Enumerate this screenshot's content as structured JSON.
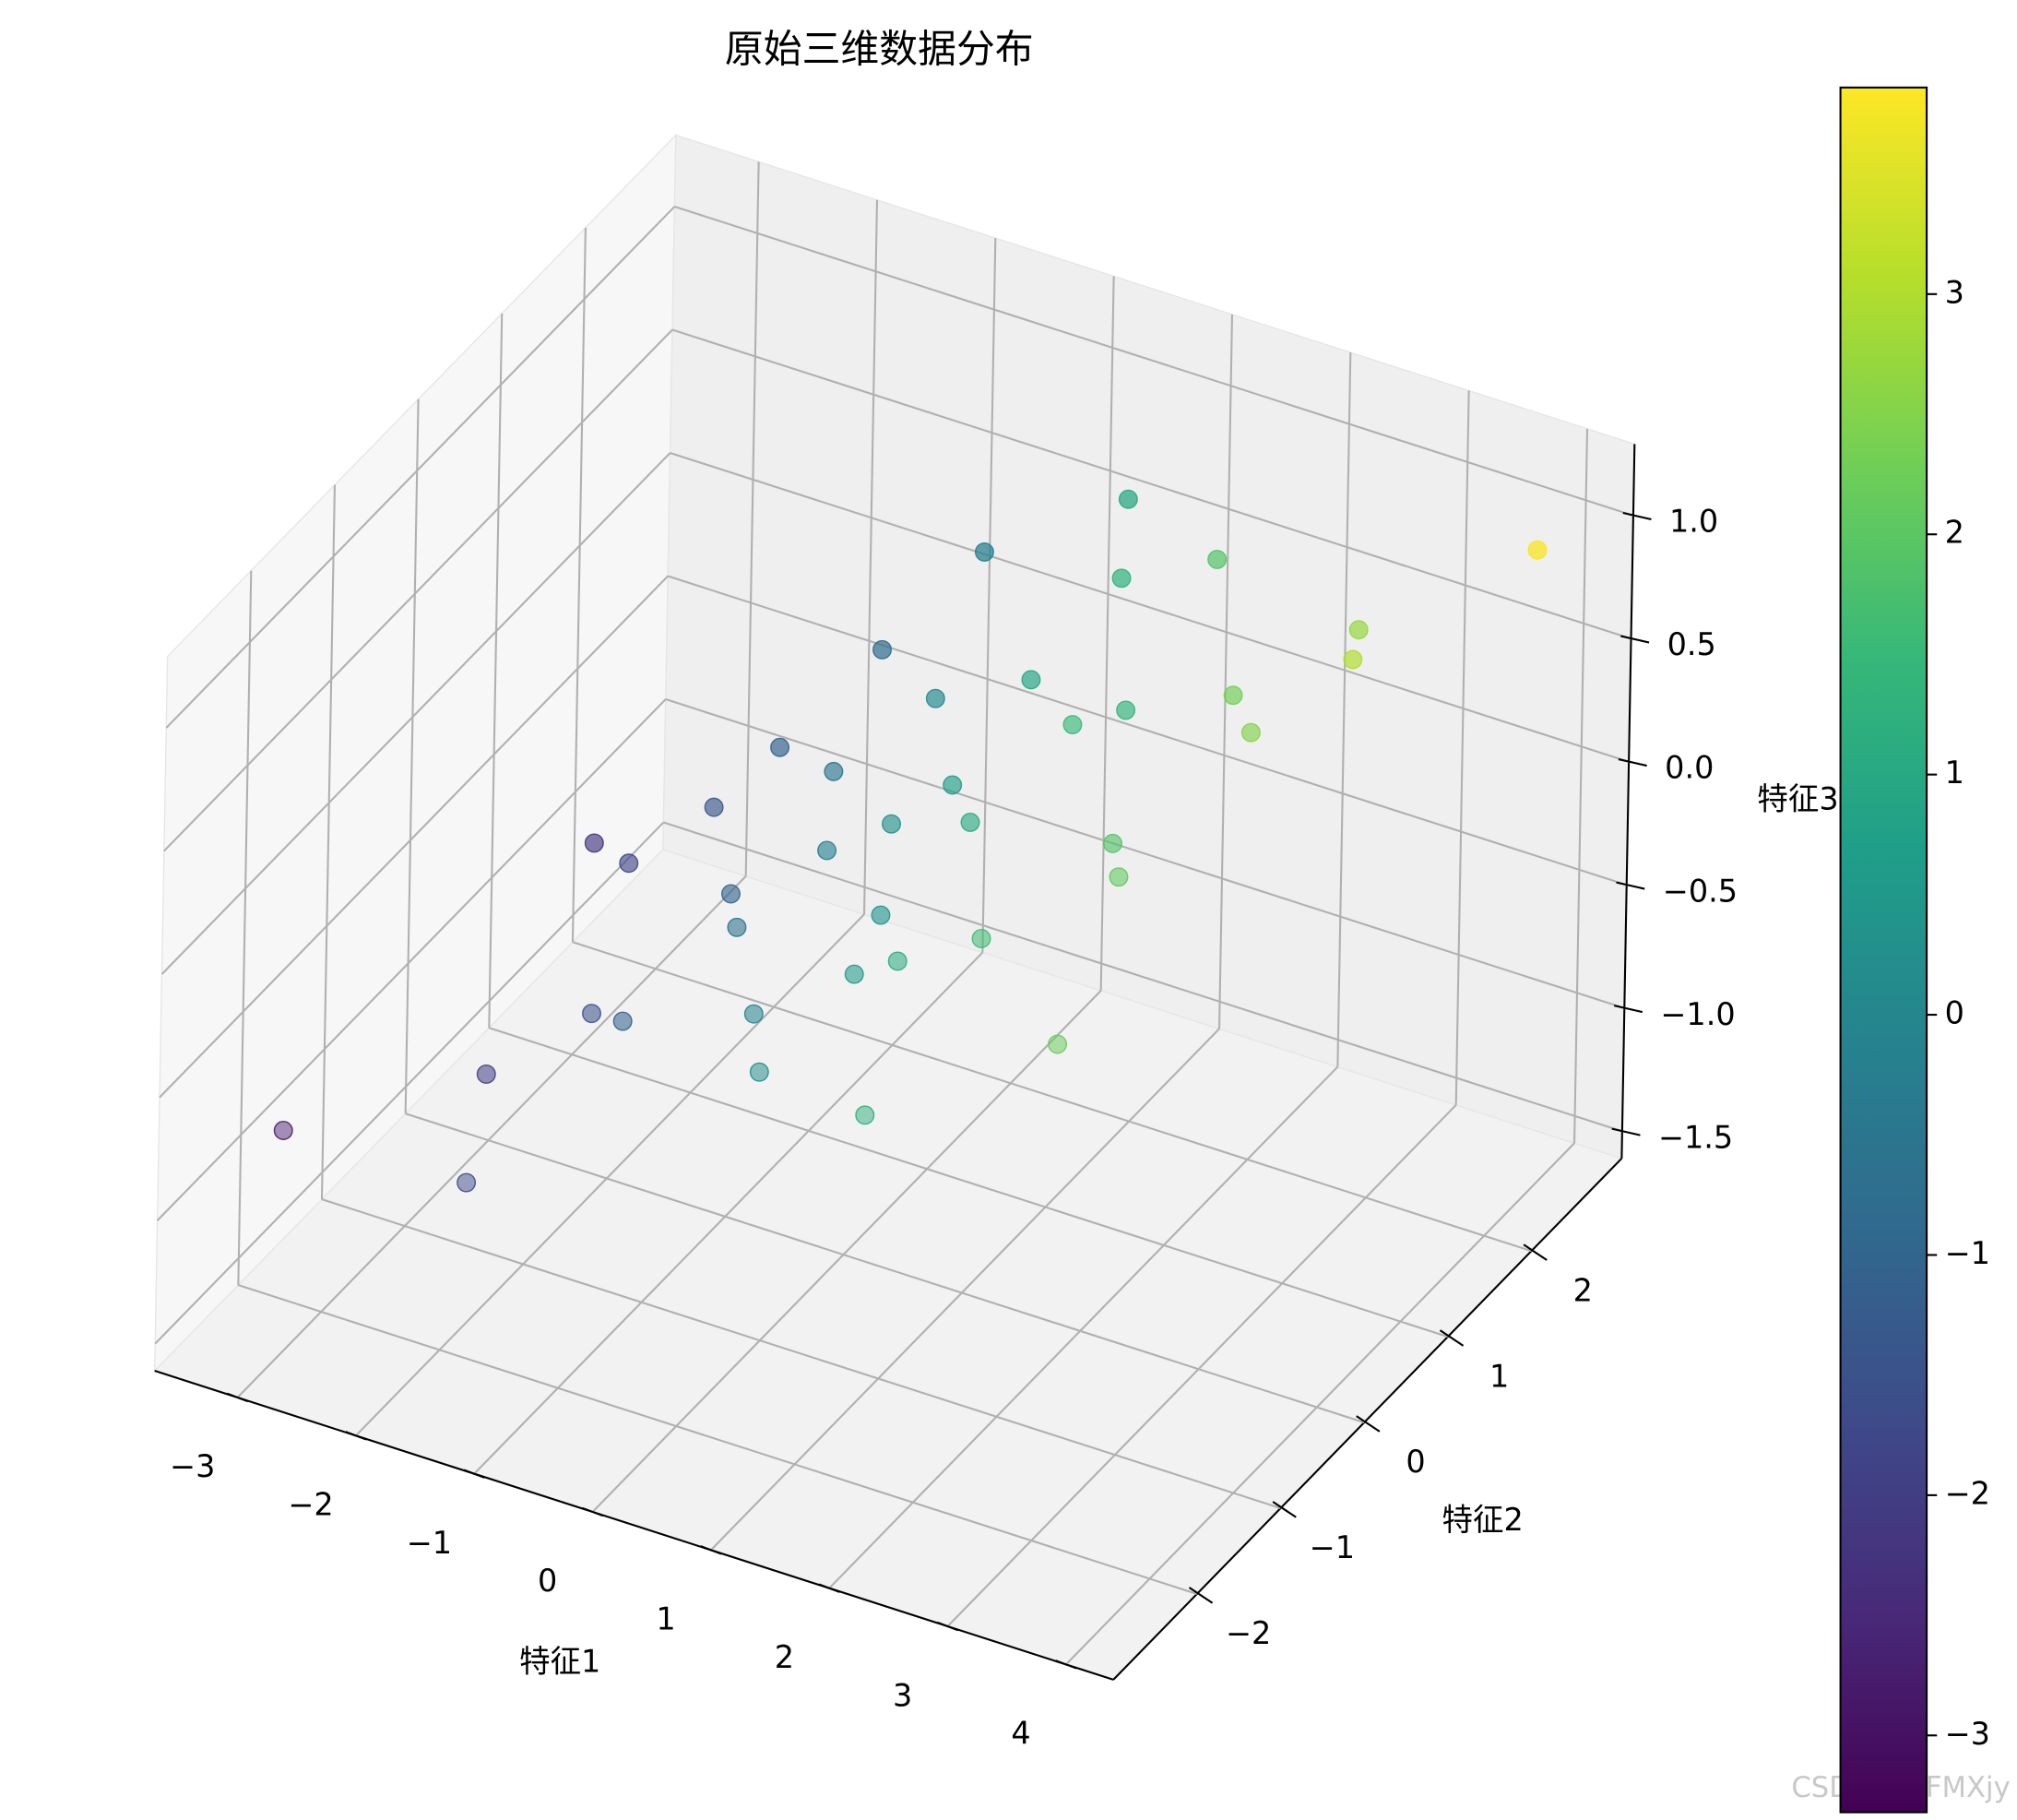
{
  "chart_data": {
    "type": "scatter3d",
    "title": "原始三维数据分布",
    "xlabel": "特征1",
    "ylabel": "特征2",
    "zlabel": "特征3",
    "watermark": "CSDN @FFMXjy",
    "colormap": "viridis",
    "xlim": [
      -3.7,
      4.4
    ],
    "ylim": [
      -3,
      3.08
    ],
    "zlim": [
      -1.61,
      1.29
    ],
    "xticks": [
      {
        "value": -3,
        "label": "−3"
      },
      {
        "value": -2,
        "label": "−2"
      },
      {
        "value": -1,
        "label": "−1"
      },
      0,
      1,
      2,
      3,
      4
    ],
    "yticks": [
      {
        "value": -2,
        "label": "−2"
      },
      {
        "value": -1,
        "label": "−1"
      },
      0,
      1,
      2
    ],
    "zticks": [
      {
        "value": -1.5,
        "label": "−1.5"
      },
      {
        "value": -1,
        "label": "−1.0"
      },
      {
        "value": -0.5,
        "label": "−0.5"
      },
      {
        "value": 0,
        "label": "0.0"
      },
      {
        "value": 0.5,
        "label": "0.5"
      },
      {
        "value": 1,
        "label": "1.0"
      }
    ],
    "clim": [
      -3.32,
      3.86
    ],
    "cticks": [
      {
        "value": -3,
        "label": "−3"
      },
      {
        "value": -2,
        "label": "−2"
      },
      {
        "value": -1,
        "label": "−1"
      },
      0,
      1,
      2,
      3
    ],
    "grid": true,
    "x": [
      4,
      -3,
      3.2,
      3,
      2.5,
      2.6,
      2,
      2.2,
      1.5,
      1.8,
      1.2,
      1,
      1.1,
      0.8,
      0.5,
      0.6,
      0.2,
      0.3,
      0,
      -0.2,
      -0.1,
      -0.5,
      -0.6,
      -0.8,
      -1,
      -1.2,
      -1.5,
      -1.6,
      -2,
      -2.2,
      -2.5,
      -1.8,
      1.4,
      2.8,
      0.9,
      -0.3,
      1.6,
      0.4,
      -1.3,
      3.5
    ],
    "y": [
      2.5,
      -2.5,
      1.5,
      0.5,
      1,
      -0.5,
      1.5,
      0,
      0.5,
      -1,
      1.5,
      0,
      -1,
      1,
      0.5,
      -0.8,
      0.2,
      -1.5,
      1,
      0,
      -1,
      0.5,
      -0.5,
      1.5,
      0,
      -1,
      0.5,
      -0.8,
      0.2,
      -1.2,
      0.5,
      -2,
      -1.8,
      -1.5,
      2,
      2,
      1,
      -0.2,
      1,
      1
    ],
    "z": [
      1.0,
      -0.7,
      0.9,
      0.8,
      0.7,
      0.5,
      1.0,
      0.4,
      0.6,
      0.3,
      0.8,
      0.3,
      0.1,
      0.5,
      0.2,
      -0.1,
      0.1,
      -0.3,
      0.3,
      0,
      -0.3,
      0.1,
      -0.2,
      0.2,
      -0.3,
      -0.5,
      -0.2,
      -0.6,
      -0.4,
      -0.8,
      -0.5,
      -0.9,
      -0.2,
      0.2,
      0.9,
      0.5,
      0.5,
      -0.1,
      -0.1,
      1.0
    ],
    "c": [
      3.8,
      -2.8,
      2.7,
      2.5,
      2.3,
      2.1,
      1.9,
      1.9,
      1.5,
      1.6,
      1.3,
      1.0,
      1.1,
      0.9,
      0.6,
      0.5,
      0.3,
      0.2,
      0.1,
      -0.2,
      -0.1,
      -0.5,
      -0.6,
      -0.8,
      -1.0,
      -1.1,
      -1.4,
      -1.5,
      -1.8,
      -2.0,
      -2.2,
      -1.7,
      1.2,
      2.2,
      1.0,
      -0.2,
      1.4,
      0.4,
      -1.1,
      3.0
    ]
  }
}
